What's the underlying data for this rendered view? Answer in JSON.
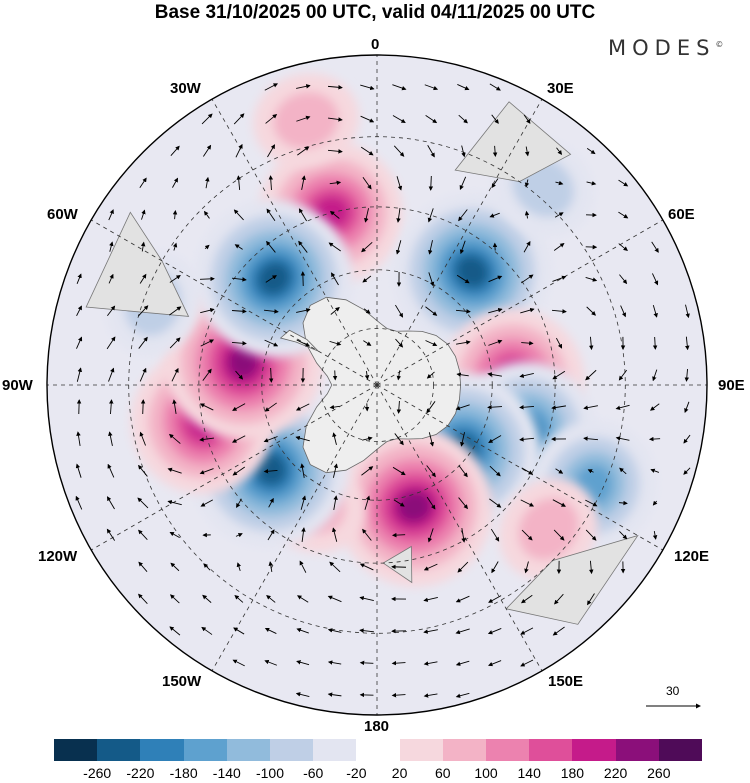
{
  "title": "Base 31/10/2025 00 UTC, valid 04/11/2025 00 UTC",
  "brand": "MODES",
  "brand_mark": "©",
  "longitude_labels": {
    "top": "0",
    "bottom": "180",
    "left": "90W",
    "right": "90E",
    "top_left": "30W",
    "top_right": "30E",
    "upper_left": "60W",
    "upper_right": "60E",
    "lower_left": "120W",
    "lower_right": "120E",
    "bottom_left": "150W",
    "bottom_right": "150E"
  },
  "vector_reference": {
    "value": "30",
    "icon": "arrow-right-icon"
  },
  "colorbar": {
    "ticks": [
      "-260",
      "-220",
      "-180",
      "-140",
      "-100",
      "-60",
      "-20",
      "20",
      "60",
      "100",
      "140",
      "180",
      "220",
      "260"
    ],
    "colors": [
      "#08304f",
      "#145a88",
      "#2f80b8",
      "#5ea1cf",
      "#91bbdc",
      "#bfcfe6",
      "#e3e5f1",
      "#ffffff",
      "#f6d8de",
      "#f3b3c6",
      "#ec82af",
      "#df4f9a",
      "#c51b8a",
      "#8b0f7a",
      "#4f0b58"
    ]
  },
  "map_fields": {
    "anomalies": [
      {
        "lon": -15,
        "lat": -45,
        "value": 180
      },
      {
        "lon": 40,
        "lat": -52,
        "value": -220
      },
      {
        "lon": 88,
        "lat": -55,
        "value": 180
      },
      {
        "lon": 108,
        "lat": -50,
        "value": -180
      },
      {
        "lon": 128,
        "lat": -62,
        "value": -220
      },
      {
        "lon": 163,
        "lat": -57,
        "value": 220
      },
      {
        "lon": 208,
        "lat": -55,
        "value": 60
      },
      {
        "lon": 232,
        "lat": -55,
        "value": -220
      },
      {
        "lon": 258,
        "lat": -45,
        "value": 180
      },
      {
        "lon": 280,
        "lat": -55,
        "value": 220
      },
      {
        "lon": 316,
        "lat": -52,
        "value": -220
      },
      {
        "lon": 290,
        "lat": -32,
        "value": -60
      },
      {
        "lon": 115,
        "lat": -32,
        "value": -140
      },
      {
        "lon": 130,
        "lat": -35,
        "value": 60
      },
      {
        "lon": 40,
        "lat": -28,
        "value": -60
      },
      {
        "lon": 345,
        "lat": -25,
        "value": 60
      }
    ]
  }
}
